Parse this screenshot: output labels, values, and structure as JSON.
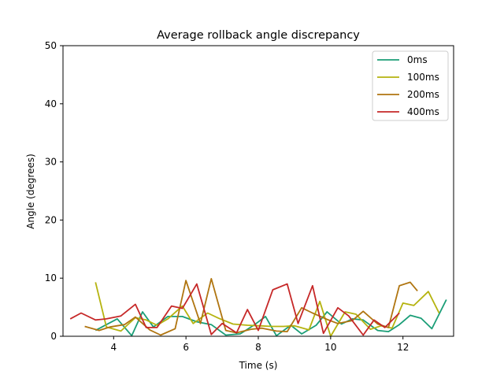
{
  "chart_data": {
    "type": "line",
    "title": "Average rollback angle discrepancy",
    "xlabel": "Time (s)",
    "ylabel": "Angle (degrees)",
    "xlim": [
      2.6,
      13.4
    ],
    "ylim": [
      0,
      50
    ],
    "xticks": [
      4,
      6,
      8,
      10,
      12
    ],
    "yticks": [
      0,
      10,
      20,
      30,
      40,
      50
    ],
    "grid": false,
    "legend_position": "top-right",
    "series": [
      {
        "name": "0ms",
        "color": "#1b9e77",
        "x": [
          3.5,
          3.8,
          4.1,
          4.5,
          4.8,
          5.1,
          5.5,
          5.9,
          6.3,
          6.7,
          7.1,
          7.5,
          7.9,
          8.2,
          8.5,
          8.9,
          9.2,
          9.6,
          9.9,
          10.3,
          10.6,
          10.9,
          11.3,
          11.6,
          11.9,
          12.2,
          12.5,
          12.8,
          13.2
        ],
        "y": [
          1.0,
          2.0,
          3.0,
          0.1,
          4.2,
          1.6,
          3.4,
          3.4,
          2.5,
          2.0,
          0.2,
          0.4,
          2.0,
          3.4,
          0.1,
          1.9,
          0.4,
          1.9,
          4.2,
          2.1,
          3.0,
          2.8,
          1.0,
          0.8,
          2.0,
          3.6,
          3.1,
          1.3,
          6.3
        ]
      },
      {
        "name": "100ms",
        "color": "#b5b30f",
        "x": [
          3.5,
          3.8,
          4.2,
          4.6,
          4.9,
          5.2,
          5.5,
          5.9,
          6.2,
          6.6,
          6.9,
          7.3,
          7.7,
          8.0,
          8.4,
          8.7,
          9.0,
          9.4,
          9.7,
          10.0,
          10.4,
          10.7,
          11.1,
          11.4,
          11.7,
          12.0,
          12.3,
          12.7,
          13.0
        ],
        "y": [
          9.3,
          1.6,
          0.9,
          3.2,
          2.8,
          1.9,
          3.0,
          5.2,
          2.2,
          4.0,
          3.1,
          2.1,
          1.9,
          1.8,
          1.7,
          1.7,
          1.8,
          1.1,
          6.0,
          0.0,
          4.2,
          3.8,
          1.2,
          1.8,
          1.4,
          5.7,
          5.3,
          7.7,
          4.0
        ]
      },
      {
        "name": "200ms",
        "color": "#b07510",
        "x": [
          3.2,
          3.6,
          3.9,
          4.3,
          4.6,
          5.0,
          5.3,
          5.7,
          6.0,
          6.4,
          6.7,
          7.1,
          7.4,
          7.8,
          8.1,
          8.5,
          8.8,
          9.2,
          9.5,
          9.9,
          10.2,
          10.6,
          10.9,
          11.3,
          11.6,
          11.9,
          12.2,
          12.4
        ],
        "y": [
          1.7,
          1.0,
          1.6,
          2.0,
          3.3,
          1.1,
          0.2,
          1.3,
          9.6,
          2.2,
          9.9,
          1.0,
          0.6,
          1.2,
          1.4,
          0.9,
          0.8,
          4.9,
          4.0,
          2.9,
          2.2,
          2.7,
          4.3,
          2.1,
          1.5,
          8.7,
          9.3,
          7.8
        ]
      },
      {
        "name": "400ms",
        "color": "#c62828",
        "x": [
          2.8,
          3.1,
          3.5,
          3.8,
          4.2,
          4.6,
          4.9,
          5.2,
          5.6,
          5.9,
          6.3,
          6.7,
          7.0,
          7.4,
          7.7,
          8.0,
          8.4,
          8.8,
          9.1,
          9.5,
          9.8,
          10.2,
          10.5,
          10.9,
          11.2,
          11.5,
          11.9
        ],
        "y": [
          3.0,
          4.0,
          2.8,
          3.0,
          3.5,
          5.5,
          1.5,
          1.5,
          5.2,
          4.8,
          9.0,
          0.3,
          2.2,
          0.6,
          4.6,
          1.0,
          8.0,
          9.0,
          2.2,
          8.7,
          0.5,
          4.9,
          3.5,
          0.2,
          2.8,
          1.5,
          4.0
        ]
      }
    ]
  }
}
